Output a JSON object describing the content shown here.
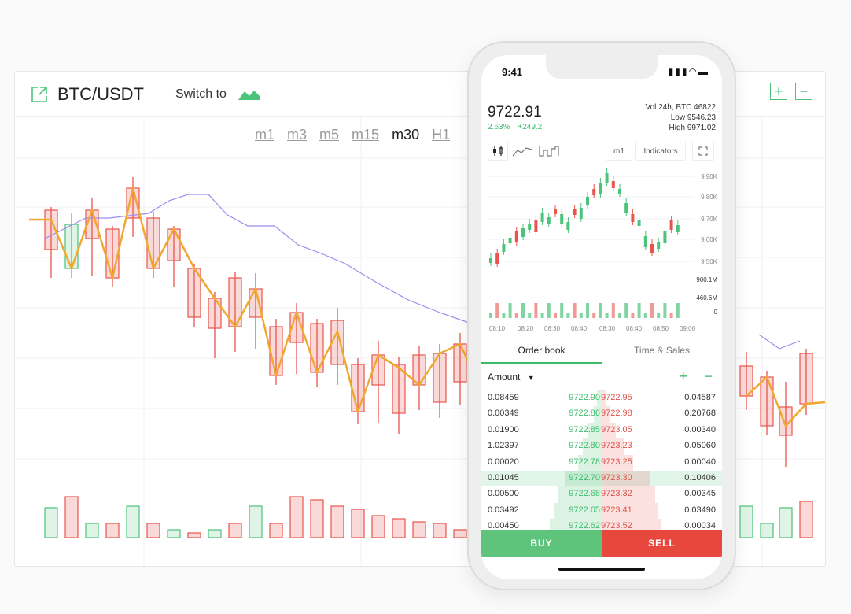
{
  "desktop": {
    "pair": "BTC/USDT",
    "switch_label": "Switch to",
    "timeframes": [
      "m1",
      "m3",
      "m5",
      "m15",
      "m30",
      "H1"
    ],
    "active_timeframe": "m30",
    "colors": {
      "up": "#4cc37a",
      "down": "#e8554d",
      "trend": "#f0a830",
      "ma": "#9b8cf0"
    }
  },
  "phone": {
    "time": "9:41",
    "price": "9722.91",
    "change_pct": "2.63%",
    "change_abs": "+249.2",
    "stats": [
      "Vol 24h, BTC 46822",
      "Low 9546.23",
      "High 9971.02"
    ],
    "tools": {
      "interval": "m1",
      "indicators": "Indicators"
    },
    "price_axis": [
      "9.90K",
      "9.80K",
      "9.70K",
      "9.60K",
      "9.50K"
    ],
    "volume_axis": [
      "900.1M",
      "460.6M",
      "0"
    ],
    "time_axis": [
      "08:10",
      "08:20",
      "08:30",
      "08:40",
      "08:30",
      "08:40",
      "08:50",
      "09:00"
    ],
    "tabs": [
      "Order book",
      "Time & Sales"
    ],
    "active_tab": "Order book",
    "amount_label": "Amount",
    "buy_label": "BUY",
    "sell_label": "SELL",
    "orderbook": [
      {
        "bq": "0.08459",
        "bp": "9722.90",
        "ap": "9722.95",
        "aq": "0.04587"
      },
      {
        "bq": "0.00349",
        "bp": "9722.86",
        "ap": "9722.98",
        "aq": "0.20768"
      },
      {
        "bq": "0.01900",
        "bp": "9722.85",
        "ap": "9723.05",
        "aq": "0.00340"
      },
      {
        "bq": "1.02397",
        "bp": "9722.80",
        "ap": "9723.23",
        "aq": "0.05060"
      },
      {
        "bq": "0.00020",
        "bp": "9722.78",
        "ap": "9723.25",
        "aq": "0.00040"
      },
      {
        "bq": "0.01045",
        "bp": "9722.70",
        "ap": "9723.30",
        "aq": "0.10406"
      },
      {
        "bq": "0.00500",
        "bp": "9722.68",
        "ap": "9723.32",
        "aq": "0.00345"
      },
      {
        "bq": "0.03492",
        "bp": "9722.65",
        "ap": "9723.41",
        "aq": "0.03490"
      },
      {
        "bq": "0.00450",
        "bp": "9722.62",
        "ap": "9723.52",
        "aq": "0.00034"
      }
    ],
    "selected_row": 5
  }
}
